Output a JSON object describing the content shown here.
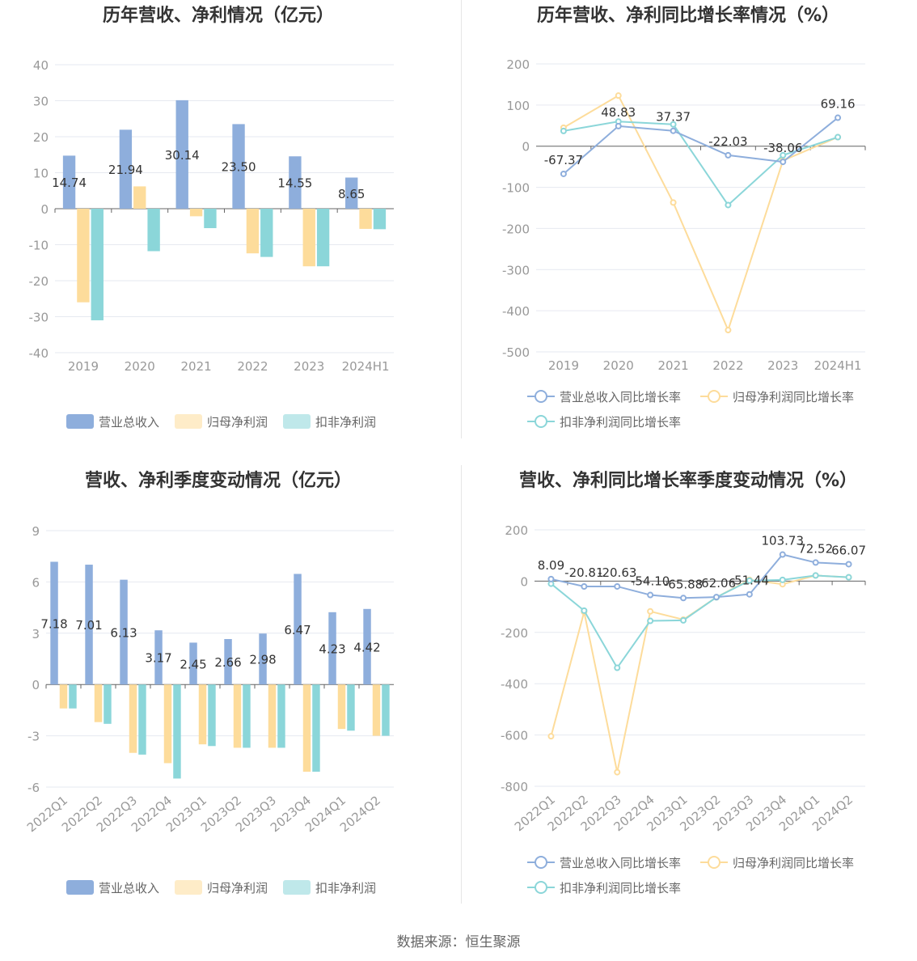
{
  "source": "数据来源：恒生聚源",
  "colors": {
    "revenue": "#8eaedc",
    "netProfit": "#fddc9b",
    "deducted": "#8bd6d9",
    "grid": "#e6e9f0",
    "axis": "#999999",
    "label": "#333333"
  },
  "chart_data": [
    {
      "type": "bar",
      "title": "历年营收、净利情况（亿元）",
      "categories": [
        "2019",
        "2020",
        "2021",
        "2022",
        "2023",
        "2024H1"
      ],
      "ylim": [
        -40,
        40
      ],
      "yticks": [
        40,
        30,
        20,
        10,
        0,
        -10,
        -20,
        -30,
        -40
      ],
      "series": [
        {
          "name": "营业总收入",
          "values": [
            14.74,
            21.94,
            30.14,
            23.5,
            14.55,
            8.65
          ],
          "labels": [
            "14.74",
            "21.94",
            "30.14",
            "23.50",
            "14.55",
            "8.65"
          ]
        },
        {
          "name": "归母净利润",
          "values": [
            -26,
            6.2,
            -2.1,
            -12.4,
            -16,
            -5.6
          ]
        },
        {
          "name": "扣非净利润",
          "values": [
            -31,
            -11.8,
            -5.4,
            -13.4,
            -16,
            -5.7
          ]
        }
      ],
      "grid": true,
      "legend": "bottom"
    },
    {
      "type": "line",
      "title": "历年营收、净利同比增长率情况（%）",
      "categories": [
        "2019",
        "2020",
        "2021",
        "2022",
        "2023",
        "2024H1"
      ],
      "ylim": [
        -500,
        200
      ],
      "yticks": [
        200,
        100,
        0,
        -100,
        -200,
        -300,
        -400,
        -500
      ],
      "series": [
        {
          "name": "营业总收入同比增长率",
          "values": [
            -67.37,
            48.83,
            37.37,
            -22.03,
            -38.06,
            69.16
          ],
          "labels": [
            "-67.37",
            "48.83",
            "37.37",
            "-22.03",
            "-38.06",
            "69.16"
          ]
        },
        {
          "name": "归母净利润同比增长率",
          "values": [
            45,
            123,
            -137,
            -447,
            -35,
            22
          ]
        },
        {
          "name": "扣非净利润同比增长率",
          "values": [
            37,
            60,
            53,
            -143,
            -22,
            22
          ]
        }
      ],
      "grid": true,
      "legend": "bottom"
    },
    {
      "type": "bar",
      "title": "营收、净利季度变动情况（亿元）",
      "categories": [
        "2022Q1",
        "2022Q2",
        "2022Q3",
        "2022Q4",
        "2023Q1",
        "2023Q2",
        "2023Q3",
        "2023Q4",
        "2024Q1",
        "2024Q2"
      ],
      "ylim": [
        -6,
        9
      ],
      "yticks": [
        9,
        6,
        3,
        0,
        -3,
        -6
      ],
      "series": [
        {
          "name": "营业总收入",
          "values": [
            7.18,
            7.01,
            6.13,
            3.17,
            2.45,
            2.66,
            2.98,
            6.47,
            4.23,
            4.42
          ],
          "labels": [
            "7.18",
            "7.01",
            "6.13",
            "3.17",
            "2.45",
            "2.66",
            "2.98",
            "6.47",
            "4.23",
            "4.42"
          ]
        },
        {
          "name": "归母净利润",
          "values": [
            -1.4,
            -2.2,
            -4.0,
            -4.6,
            -3.5,
            -3.7,
            -3.7,
            -5.1,
            -2.6,
            -3.0
          ]
        },
        {
          "name": "扣非净利润",
          "values": [
            -1.4,
            -2.3,
            -4.1,
            -5.5,
            -3.6,
            -3.7,
            -3.7,
            -5.1,
            -2.7,
            -3.0
          ]
        }
      ],
      "grid": true,
      "legend": "bottom"
    },
    {
      "type": "line",
      "title": "营收、净利同比增长率季度变动情况（%）",
      "categories": [
        "2022Q1",
        "2022Q2",
        "2022Q3",
        "2022Q4",
        "2023Q1",
        "2023Q2",
        "2023Q3",
        "2023Q4",
        "2024Q1",
        "2024Q2"
      ],
      "ylim": [
        -800,
        200
      ],
      "yticks": [
        200,
        0,
        -200,
        -400,
        -600,
        -800
      ],
      "series": [
        {
          "name": "营业总收入同比增长率",
          "values": [
            8.09,
            -20.81,
            -20.63,
            -54.1,
            -65.88,
            -62.06,
            -51.44,
            103.73,
            72.52,
            66.07
          ],
          "labels": [
            "8.09",
            "-20.81",
            "-20.63",
            "-54.10",
            "-65.88",
            "-62.06",
            "-51.44",
            "103.73",
            "72.52",
            "66.07"
          ]
        },
        {
          "name": "归母净利润同比增长率",
          "values": [
            -605,
            -120,
            -745,
            -118,
            -150,
            -63,
            5,
            -12,
            22,
            15
          ]
        },
        {
          "name": "扣非净利润同比增长率",
          "values": [
            -10,
            -115,
            -338,
            -155,
            -153,
            -63,
            2,
            5,
            22,
            15
          ]
        }
      ],
      "grid": true,
      "legend": "bottom"
    }
  ]
}
